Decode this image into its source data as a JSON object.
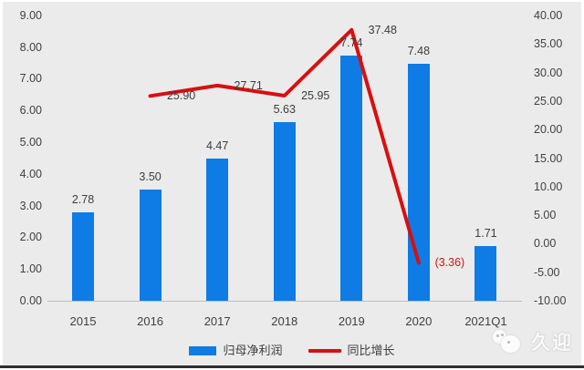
{
  "chart_data": {
    "type": "bar",
    "subtype": "combo-bar-line",
    "title": "",
    "categories": [
      "2015",
      "2016",
      "2017",
      "2018",
      "2019",
      "2020",
      "2021Q1"
    ],
    "series": [
      {
        "name": "归母净利润",
        "type": "bar",
        "axis": "left",
        "color": "#0e7ce4",
        "values": [
          2.78,
          3.5,
          4.47,
          5.63,
          7.74,
          7.48,
          1.71
        ],
        "labels": [
          "2.78",
          "3.50",
          "4.47",
          "5.63",
          "7.74",
          "7.48",
          "1.71"
        ]
      },
      {
        "name": "同比增长",
        "type": "line",
        "axis": "right",
        "color": "#d90f0f",
        "values": [
          null,
          25.9,
          27.71,
          25.95,
          37.48,
          -3.36,
          null
        ],
        "labels": [
          null,
          "25.90",
          "27.71",
          "25.95",
          "37.48",
          "(3.36)",
          null
        ],
        "label_colors": [
          null,
          "#3d3d3d",
          "#3d3d3d",
          "#3d3d3d",
          "#3d3d3d",
          "#d90f0f",
          null
        ]
      }
    ],
    "left_axis": {
      "min": 0,
      "max": 9,
      "tick_labels": [
        "9.00",
        "8.00",
        "7.00",
        "6.00",
        "5.00",
        "4.00",
        "3.00",
        "2.00",
        "1.00",
        "0.00"
      ],
      "tick_values": [
        9,
        8,
        7,
        6,
        5,
        4,
        3,
        2,
        1,
        0
      ]
    },
    "right_axis": {
      "min": -10,
      "max": 40,
      "tick_labels": [
        "40.00",
        "35.00",
        "30.00",
        "25.00",
        "20.00",
        "15.00",
        "10.00",
        "5.00",
        "0.00",
        "-5.00",
        "-10.00"
      ],
      "tick_values": [
        40,
        35,
        30,
        25,
        20,
        15,
        10,
        5,
        0,
        -5,
        -10
      ]
    },
    "grid": false,
    "legend_position": "bottom"
  },
  "colors": {
    "background": "#ebebeb",
    "text": "#404040",
    "axis_line": "#bdbdbd",
    "divider": "#2e2e2e"
  },
  "watermark": {
    "text": "久迎"
  }
}
